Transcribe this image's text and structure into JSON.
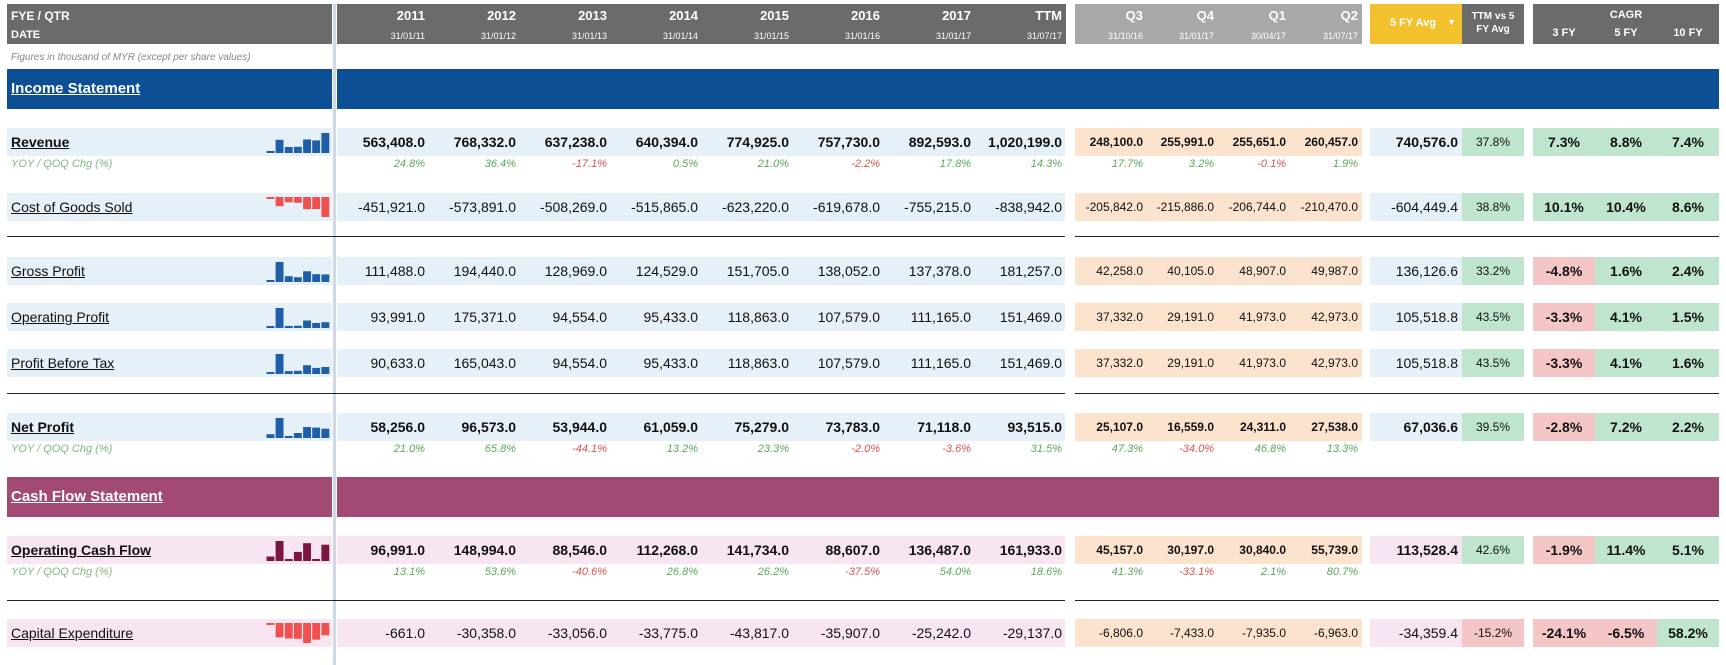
{
  "header": {
    "fye_label": "FYE / QTR",
    "date_label": "DATE",
    "years": [
      {
        "label": "2011",
        "date": "31/01/11"
      },
      {
        "label": "2012",
        "date": "31/01/12"
      },
      {
        "label": "2013",
        "date": "31/01/13"
      },
      {
        "label": "2014",
        "date": "31/01/14"
      },
      {
        "label": "2015",
        "date": "31/01/15"
      },
      {
        "label": "2016",
        "date": "31/01/16"
      },
      {
        "label": "2017",
        "date": "31/01/17"
      },
      {
        "label": "TTM",
        "date": "31/07/17"
      }
    ],
    "quarters": [
      {
        "label": "Q3",
        "date": "31/10/16"
      },
      {
        "label": "Q4",
        "date": "31/01/17"
      },
      {
        "label": "Q1",
        "date": "30/04/17"
      },
      {
        "label": "Q2",
        "date": "31/07/17"
      }
    ],
    "avg_label": "5 FY Avg",
    "ttm_vs_label": "TTM vs 5 FY Avg",
    "cagr_label": "CAGR",
    "cagr_cols": [
      "3 FY",
      "5 FY",
      "10 FY"
    ]
  },
  "note": "Figures in thousand of MYR (except per share values)",
  "sections": {
    "income": "Income Statement",
    "cashflow": "Cash Flow Statement"
  },
  "colors": {
    "income_bar": "#0d4f95",
    "cashflow_bar": "#a24a74",
    "blue_spark": "#1f5fa8",
    "red_spark": "#f05050",
    "maroon_spark": "#7a1640"
  },
  "rows": [
    {
      "label": "Revenue",
      "bold": true,
      "spark": "blue",
      "years": [
        "563,408.0",
        "768,332.0",
        "637,238.0",
        "640,394.0",
        "774,925.0",
        "757,730.0",
        "892,593.0",
        "1,020,199.0"
      ],
      "quarters": [
        "248,100.0",
        "255,991.0",
        "255,651.0",
        "260,457.0"
      ],
      "avg": "740,576.0",
      "ttm": "37.8%",
      "cagr": [
        "7.3%",
        "8.8%",
        "7.4%"
      ],
      "yoy_label": "YOY / QOQ Chg (%)",
      "yoy": [
        "24.8%",
        "36.4%",
        "-17.1%",
        "0.5%",
        "21.0%",
        "-2.2%",
        "17.8%",
        "14.3%"
      ],
      "qoq": [
        "17.7%",
        "3.2%",
        "-0.1%",
        "1.9%"
      ]
    },
    {
      "label": "Cost of Goods Sold",
      "bold": false,
      "spark": "red",
      "years": [
        "-451,921.0",
        "-573,891.0",
        "-508,269.0",
        "-515,865.0",
        "-623,220.0",
        "-619,678.0",
        "-755,215.0",
        "-838,942.0"
      ],
      "quarters": [
        "-205,842.0",
        "-215,886.0",
        "-206,744.0",
        "-210,470.0"
      ],
      "avg": "-604,449.4",
      "ttm": "38.8%",
      "cagr": [
        "10.1%",
        "10.4%",
        "8.6%"
      ]
    },
    {
      "label": "Gross Profit",
      "bold": false,
      "spark": "blue",
      "years": [
        "111,488.0",
        "194,440.0",
        "128,969.0",
        "124,529.0",
        "151,705.0",
        "138,052.0",
        "137,378.0",
        "181,257.0"
      ],
      "quarters": [
        "42,258.0",
        "40,105.0",
        "48,907.0",
        "49,987.0"
      ],
      "avg": "136,126.6",
      "ttm": "33.2%",
      "cagr": [
        "-4.8%",
        "1.6%",
        "2.4%"
      ]
    },
    {
      "label": "Operating Profit",
      "bold": false,
      "spark": "blue",
      "years": [
        "93,991.0",
        "175,371.0",
        "94,554.0",
        "95,433.0",
        "118,863.0",
        "107,579.0",
        "111,165.0",
        "151,469.0"
      ],
      "quarters": [
        "37,332.0",
        "29,191.0",
        "41,973.0",
        "42,973.0"
      ],
      "avg": "105,518.8",
      "ttm": "43.5%",
      "cagr": [
        "-3.3%",
        "4.1%",
        "1.5%"
      ]
    },
    {
      "label": "Profit Before Tax",
      "bold": false,
      "spark": "blue",
      "years": [
        "90,633.0",
        "165,043.0",
        "94,554.0",
        "95,433.0",
        "118,863.0",
        "107,579.0",
        "111,165.0",
        "151,469.0"
      ],
      "quarters": [
        "37,332.0",
        "29,191.0",
        "41,973.0",
        "42,973.0"
      ],
      "avg": "105,518.8",
      "ttm": "43.5%",
      "cagr": [
        "-3.3%",
        "4.1%",
        "1.6%"
      ]
    },
    {
      "label": "Net Profit",
      "bold": true,
      "spark": "blue",
      "years": [
        "58,256.0",
        "96,573.0",
        "53,944.0",
        "61,059.0",
        "75,279.0",
        "73,783.0",
        "71,118.0",
        "93,515.0"
      ],
      "quarters": [
        "25,107.0",
        "16,559.0",
        "24,311.0",
        "27,538.0"
      ],
      "avg": "67,036.6",
      "ttm": "39.5%",
      "cagr": [
        "-2.8%",
        "7.2%",
        "2.2%"
      ],
      "yoy_label": "YOY / QOQ Chg (%)",
      "yoy": [
        "21.0%",
        "65.8%",
        "-44.1%",
        "13.2%",
        "23.3%",
        "-2.0%",
        "-3.6%",
        "31.5%"
      ],
      "qoq": [
        "47.3%",
        "-34.0%",
        "46.8%",
        "13.3%"
      ]
    },
    {
      "label": "Operating Cash Flow",
      "bold": true,
      "spark": "maroon",
      "years": [
        "96,991.0",
        "148,994.0",
        "88,546.0",
        "112,268.0",
        "141,734.0",
        "88,607.0",
        "136,487.0",
        "161,933.0"
      ],
      "quarters": [
        "45,157.0",
        "30,197.0",
        "30,840.0",
        "55,739.0"
      ],
      "avg": "113,528.4",
      "ttm": "42.6%",
      "cagr": [
        "-1.9%",
        "11.4%",
        "5.1%"
      ],
      "yoy_label": "YOY / QOQ Chg (%)",
      "yoy": [
        "13.1%",
        "53.6%",
        "-40.6%",
        "26.8%",
        "26.2%",
        "-37.5%",
        "54.0%",
        "18.6%"
      ],
      "qoq": [
        "41.3%",
        "-33.1%",
        "2.1%",
        "80.7%"
      ]
    },
    {
      "label": "Capital Expenditure",
      "bold": false,
      "spark": "red",
      "years": [
        "-661.0",
        "-30,358.0",
        "-33,056.0",
        "-33,775.0",
        "-43,817.0",
        "-35,907.0",
        "-25,242.0",
        "-29,137.0"
      ],
      "quarters": [
        "-6,806.0",
        "-7,433.0",
        "-7,935.0",
        "-6,963.0"
      ],
      "avg": "-34,359.4",
      "ttm": "-15.2%",
      "cagr": [
        "-24.1%",
        "-6.5%",
        "58.2%"
      ]
    }
  ]
}
